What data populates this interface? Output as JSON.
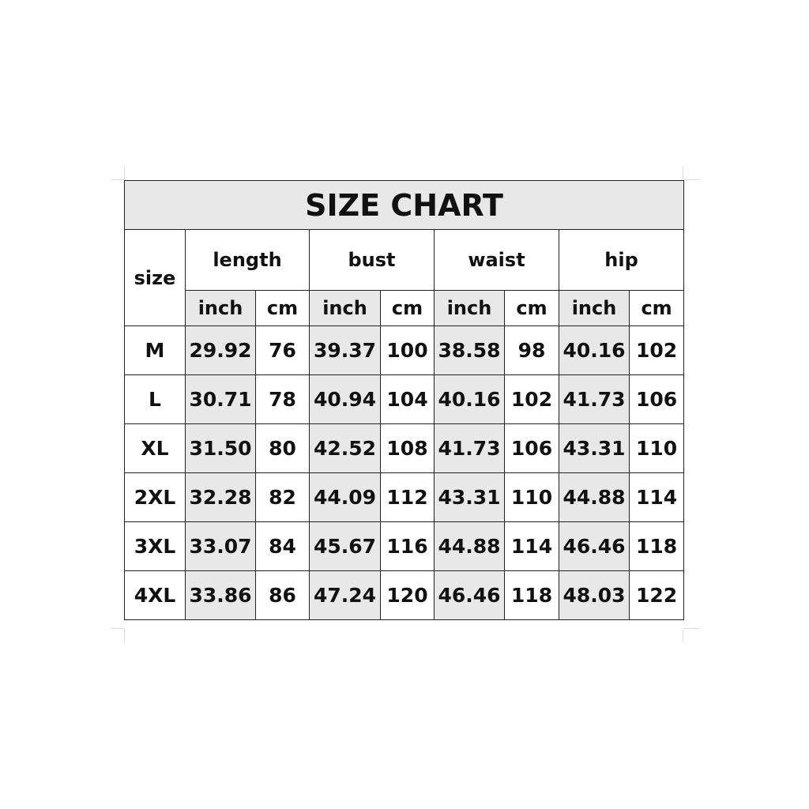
{
  "chart_data": {
    "type": "table",
    "title": "SIZE CHART",
    "size_header": "size",
    "groups": [
      "length",
      "bust",
      "waist",
      "hip"
    ],
    "units": [
      "inch",
      "cm"
    ],
    "rows": [
      {
        "size": "M",
        "values": [
          "29.92",
          "76",
          "39.37",
          "100",
          "38.58",
          "98",
          "40.16",
          "102"
        ]
      },
      {
        "size": "L",
        "values": [
          "30.71",
          "78",
          "40.94",
          "104",
          "40.16",
          "102",
          "41.73",
          "106"
        ]
      },
      {
        "size": "XL",
        "values": [
          "31.50",
          "80",
          "42.52",
          "108",
          "41.73",
          "106",
          "43.31",
          "110"
        ]
      },
      {
        "size": "2XL",
        "values": [
          "32.28",
          "82",
          "44.09",
          "112",
          "43.31",
          "110",
          "44.88",
          "114"
        ]
      },
      {
        "size": "3XL",
        "values": [
          "33.07",
          "84",
          "45.67",
          "116",
          "44.88",
          "114",
          "46.46",
          "118"
        ]
      },
      {
        "size": "4XL",
        "values": [
          "33.86",
          "86",
          "47.24",
          "120",
          "46.46",
          "118",
          "48.03",
          "122"
        ]
      }
    ],
    "colors": {
      "shade": "#e8e8e8",
      "border": "#222222"
    }
  }
}
